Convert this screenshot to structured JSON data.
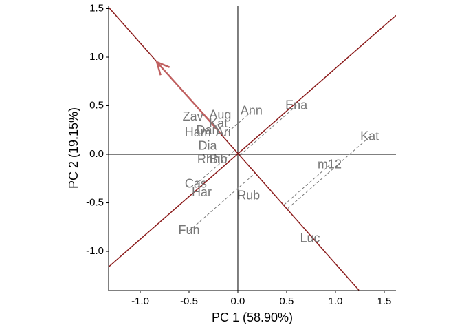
{
  "chart_data": {
    "type": "biplot",
    "xlabel": "PC 1 (58.90%)",
    "ylabel": "PC 2 (19.15%)",
    "xlim": [
      -1.324,
      1.62
    ],
    "ylim": [
      -1.404,
      1.532
    ],
    "xticks": [
      {
        "value": -1,
        "label": "-1.0"
      },
      -0.5,
      {
        "value": 0,
        "label": "0.0"
      },
      0.5,
      {
        "value": 1,
        "label": "1.0"
      },
      1.5
    ],
    "yticks": [
      {
        "value": -1,
        "label": "-1.0"
      },
      -0.5,
      {
        "value": 0,
        "label": "0.0"
      },
      0.5,
      {
        "value": 1,
        "label": "1.0"
      },
      1.5
    ],
    "points": {
      "color": "#777777",
      "labels": [
        "Ena",
        "Ann",
        "Aug",
        "Zav",
        "Kat",
        "Ham",
        "Dan",
        "Ari",
        "Dia",
        "Rhn",
        "Bib",
        "Kat",
        "m12",
        "Cas",
        "Har",
        "Rub",
        "Fun",
        "Luc"
      ],
      "x": [
        0.6,
        0.14,
        -0.18,
        -0.46,
        -0.2,
        -0.41,
        -0.31,
        -0.15,
        -0.31,
        -0.3,
        -0.2,
        1.35,
        0.94,
        -0.43,
        -0.37,
        0.11,
        -0.5,
        0.74
      ],
      "y": [
        0.5,
        0.44,
        0.4,
        0.38,
        0.31,
        0.22,
        0.24,
        0.22,
        0.08,
        -0.06,
        -0.06,
        0.18,
        -0.11,
        -0.31,
        -0.4,
        -0.43,
        -0.79,
        -0.87
      ],
      "projected": [
        true,
        true,
        false,
        false,
        true,
        false,
        false,
        false,
        false,
        false,
        false,
        true,
        true,
        true,
        false,
        false,
        true,
        false
      ]
    },
    "lines": [
      {
        "color": "#8b1a1a",
        "x": [
          -1.324,
          1.62
        ],
        "y": [
          -1.16,
          1.43
        ]
      },
      {
        "color": "#8b1a1a",
        "x": [
          -1.32,
          1.24
        ],
        "y": [
          1.51,
          -1.4
        ]
      }
    ],
    "arrow": {
      "color": "#c06060",
      "x": [
        -0.18,
        -0.83
      ],
      "y": [
        0.22,
        0.95
      ]
    },
    "dash_color": "#777777"
  }
}
